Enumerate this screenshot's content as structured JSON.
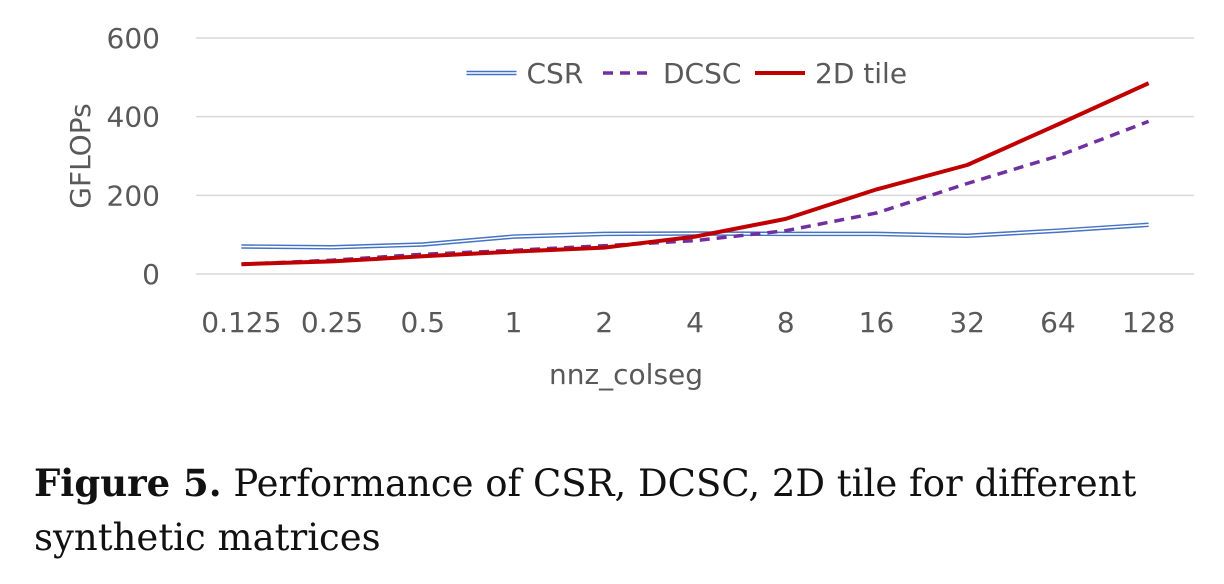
{
  "chart_data": {
    "type": "line",
    "categories": [
      "0.125",
      "0.25",
      "0.5",
      "1",
      "2",
      "4",
      "8",
      "16",
      "32",
      "64",
      "128"
    ],
    "series": [
      {
        "name": "CSR",
        "values": [
          70,
          68,
          75,
          95,
          102,
          103,
          102,
          102,
          97,
          110,
          125
        ],
        "color": "#4472c4",
        "style": "double"
      },
      {
        "name": "DCSC",
        "values": [
          25,
          35,
          50,
          60,
          72,
          85,
          110,
          155,
          230,
          300,
          388
        ],
        "color": "#7030a0",
        "style": "dashed"
      },
      {
        "name": "2D tile",
        "values": [
          25,
          32,
          45,
          57,
          67,
          95,
          140,
          215,
          277,
          380,
          485
        ],
        "color": "#c00000",
        "style": "solid"
      }
    ],
    "xlabel": "nnz_colseg",
    "ylabel": "GFLOPs",
    "ylim": [
      0,
      600
    ],
    "yticks": [
      "0",
      "200",
      "400",
      "600"
    ],
    "grid": true,
    "legend": "top-center"
  },
  "caption": {
    "label": "Figure 5.",
    "text": "Performance of CSR, DCSC, 2D tile for different synthetic matrices"
  }
}
